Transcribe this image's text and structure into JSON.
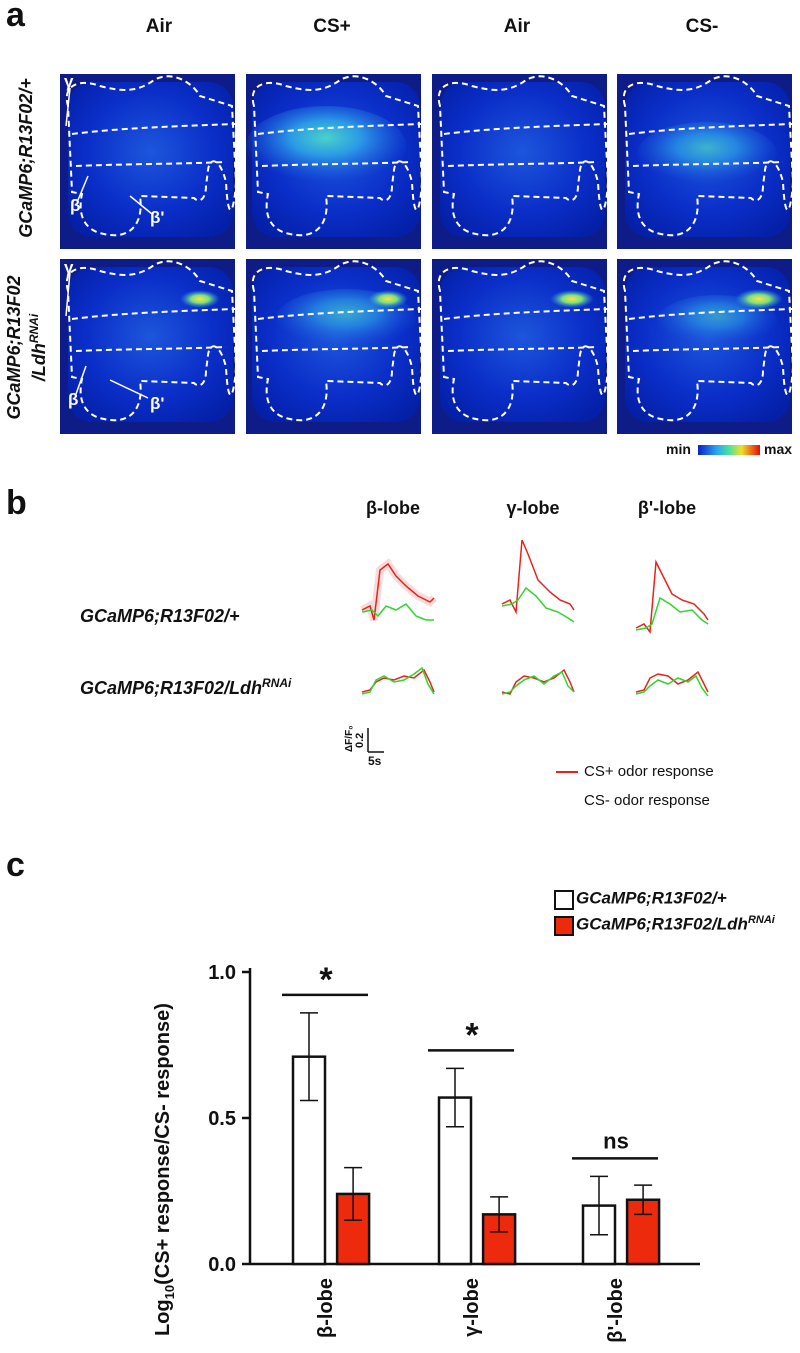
{
  "panel_a": {
    "letter": "a",
    "columns": [
      "Air",
      "CS+",
      "Air",
      "CS-"
    ],
    "rows": [
      {
        "label": "GCaMP6;R13F02/+"
      },
      {
        "label_main": "GCaMP6;R13F02",
        "label_sub_prefix": "/Ldh",
        "label_sup": "RNAi"
      }
    ],
    "lobe_labels": {
      "gamma": "γ",
      "beta": "β",
      "beta_prime": "β'"
    },
    "colormap": {
      "min": "min",
      "max": "max"
    }
  },
  "panel_b": {
    "letter": "b",
    "lobes": [
      "β-lobe",
      "γ-lobe",
      "β'-lobe"
    ],
    "genotypes": [
      {
        "main": "GCaMP6;R13F02/+",
        "sup": ""
      },
      {
        "main": "GCaMP6;R13F02/Ldh",
        "sup": "RNAi"
      }
    ],
    "scalebar": {
      "y_label": "ΔF/F₀",
      "y_value": "0.2",
      "x_value": "5s"
    },
    "legend": [
      {
        "label": "CS+ odor response",
        "color": "#e8231d"
      },
      {
        "label": "CS- odor response",
        "color": "#2fd62f"
      }
    ]
  },
  "chart_data": {
    "type": "bar",
    "letter": "c",
    "categories": [
      "β-lobe",
      "γ-lobe",
      "β'-lobe"
    ],
    "series": [
      {
        "name": "GCaMP6;R13F02/+",
        "name_sup": "",
        "color": "#ffffff",
        "values": [
          0.71,
          0.57,
          0.2
        ],
        "err": [
          0.15,
          0.1,
          0.1
        ]
      },
      {
        "name": "GCaMP6;R13F02/Ldh",
        "name_sup": "RNAi",
        "color": "#ee2a0c",
        "values": [
          0.24,
          0.17,
          0.22
        ],
        "err": [
          0.09,
          0.06,
          0.05
        ]
      }
    ],
    "ylabel_main": "Log",
    "ylabel_sub": "10",
    "ylabel_rest": "(CS+ response/CS- response)",
    "ylim": [
      0,
      1.0
    ],
    "yticks": [
      "0.0",
      "0.5",
      "1.0"
    ],
    "ytick_values": [
      0,
      0.5,
      1.0
    ],
    "significance": [
      "*",
      "*",
      "ns"
    ]
  }
}
